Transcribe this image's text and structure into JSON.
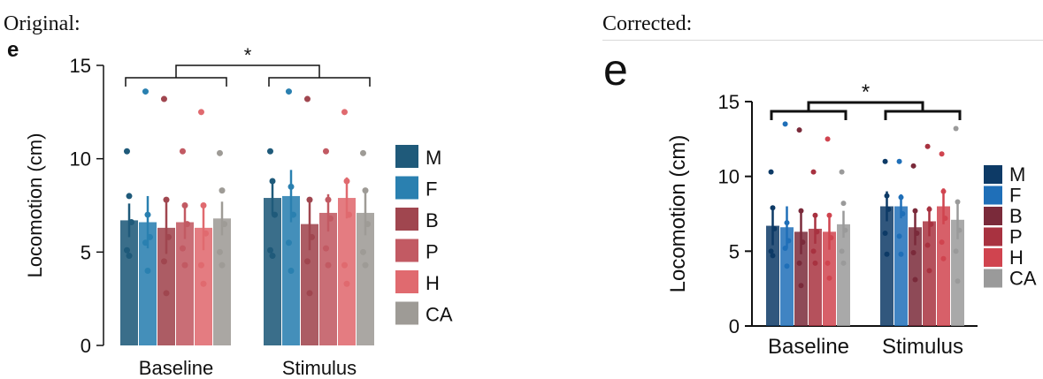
{
  "panels": {
    "left_label": "Original:",
    "right_label": "Corrected:"
  },
  "chart_data": [
    {
      "panel": "e",
      "type": "bar",
      "ylabel": "Locomotion (cm)",
      "xlabel": "",
      "ylim": [
        0,
        15
      ],
      "yticks": [
        0,
        5,
        10,
        15
      ],
      "categories": [
        "Baseline",
        "Stimulus"
      ],
      "legend_position": "right",
      "significance": "*",
      "series": [
        {
          "name": "M",
          "color": "#1f5a7a",
          "values": [
            6.7,
            7.9
          ],
          "errors": [
            0.9,
            0.9
          ],
          "points": [
            [
              10.4,
              8.0,
              6.6,
              5.1,
              4.8
            ],
            [
              10.4,
              8.8,
              7.0,
              5.1,
              4.8
            ]
          ]
        },
        {
          "name": "F",
          "color": "#2a80b0",
          "values": [
            6.6,
            8.0
          ],
          "errors": [
            1.4,
            1.4
          ],
          "points": [
            [
              13.6,
              7.0,
              5.8,
              5.5,
              4.0
            ],
            [
              13.6,
              8.5,
              7.0,
              5.5,
              4.0
            ]
          ]
        },
        {
          "name": "B",
          "color": "#a0464f",
          "values": [
            6.3,
            6.5
          ],
          "errors": [
            1.4,
            1.4
          ],
          "points": [
            [
              13.2,
              7.8,
              5.8,
              4.5,
              2.8
            ],
            [
              13.2,
              7.8,
              5.8,
              4.5,
              2.8
            ]
          ]
        },
        {
          "name": "P",
          "color": "#c25a63",
          "values": [
            6.6,
            7.1
          ],
          "errors": [
            0.9,
            1.0
          ],
          "points": [
            [
              10.4,
              7.5,
              6.5,
              5.2,
              4.3
            ],
            [
              10.4,
              7.8,
              6.8,
              5.2,
              4.3
            ]
          ]
        },
        {
          "name": "H",
          "color": "#e06a6f",
          "values": [
            6.3,
            7.9
          ],
          "errors": [
            1.2,
            1.1
          ],
          "points": [
            [
              12.5,
              7.5,
              6.0,
              4.3,
              3.3
            ],
            [
              12.5,
              8.8,
              7.0,
              4.3,
              3.3
            ]
          ]
        },
        {
          "name": "CA",
          "color": "#9e9b96",
          "values": [
            6.8,
            7.1
          ],
          "errors": [
            0.9,
            1.2
          ],
          "points": [
            [
              10.3,
              8.3,
              6.5,
              5.0,
              4.3
            ],
            [
              10.3,
              8.3,
              6.5,
              5.0,
              4.3
            ]
          ]
        }
      ]
    },
    {
      "panel": "e",
      "type": "bar",
      "ylabel": "Locomotion (cm)",
      "xlabel": "",
      "ylim": [
        0,
        15
      ],
      "yticks": [
        0,
        5,
        10,
        15
      ],
      "categories": [
        "Baseline",
        "Stimulus"
      ],
      "legend_position": "right",
      "significance": "*",
      "series": [
        {
          "name": "M",
          "color": "#0d3a66",
          "values": [
            6.7,
            8.0
          ],
          "errors": [
            1.3,
            1.0
          ],
          "points": [
            [
              10.3,
              7.9,
              6.5,
              5.0,
              4.7
            ],
            [
              11.0,
              8.7,
              7.8,
              6.2,
              4.8
            ]
          ]
        },
        {
          "name": "F",
          "color": "#1f6fb8",
          "values": [
            6.6,
            8.0
          ],
          "errors": [
            1.4,
            0.8
          ],
          "points": [
            [
              13.5,
              6.9,
              5.7,
              5.2,
              4.0
            ],
            [
              11.0,
              8.6,
              7.5,
              6.0,
              4.8
            ]
          ]
        },
        {
          "name": "B",
          "color": "#7a2a3a",
          "values": [
            6.3,
            6.6
          ],
          "errors": [
            1.5,
            1.2
          ],
          "points": [
            [
              13.1,
              7.7,
              5.6,
              4.2,
              2.7
            ],
            [
              10.7,
              7.7,
              6.2,
              4.9,
              3.1
            ]
          ]
        },
        {
          "name": "P",
          "color": "#a83240",
          "values": [
            6.5,
            7.0
          ],
          "errors": [
            1.0,
            1.0
          ],
          "points": [
            [
              10.3,
              7.4,
              6.3,
              5.0,
              4.2
            ],
            [
              12.0,
              7.8,
              6.8,
              5.4,
              3.7
            ]
          ]
        },
        {
          "name": "H",
          "color": "#d0444f",
          "values": [
            6.3,
            8.0
          ],
          "errors": [
            1.2,
            1.2
          ],
          "points": [
            [
              12.5,
              7.4,
              5.9,
              4.2,
              3.2
            ],
            [
              11.5,
              9.0,
              7.2,
              5.6,
              4.5
            ]
          ]
        },
        {
          "name": "CA",
          "color": "#9a9a9a",
          "values": [
            6.8,
            7.1
          ],
          "errors": [
            0.9,
            1.3
          ],
          "points": [
            [
              10.3,
              8.2,
              6.4,
              5.0,
              4.2
            ],
            [
              13.2,
              8.3,
              6.4,
              5.0,
              3.0
            ]
          ]
        }
      ]
    }
  ]
}
